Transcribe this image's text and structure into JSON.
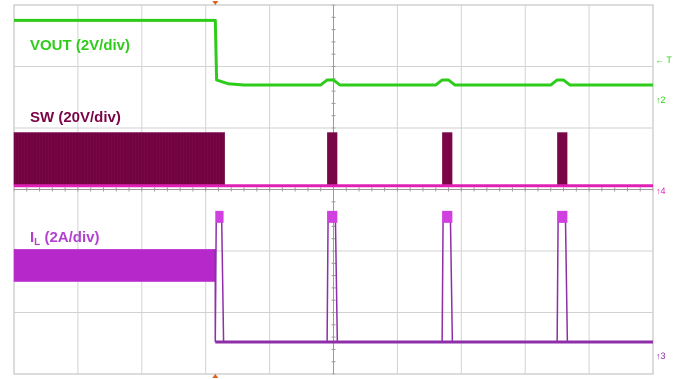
{
  "chart_data": {
    "type": "line",
    "title": "",
    "xlabel": "",
    "ylabel": "",
    "grid": true,
    "x_divisions": 10,
    "y_divisions": 6,
    "trigger_division": 3.15,
    "channels": [
      {
        "id": "vout",
        "label": "VOUT (2V/div)",
        "marker": "2",
        "color": "#2ecc1a",
        "trace": [
          [
            0,
            0.25
          ],
          [
            3.15,
            0.25
          ],
          [
            3.17,
            1.22
          ],
          [
            3.35,
            1.28
          ],
          [
            3.6,
            1.3
          ],
          [
            4.8,
            1.3
          ],
          [
            4.9,
            1.22
          ],
          [
            5.0,
            1.22
          ],
          [
            5.1,
            1.3
          ],
          [
            6.6,
            1.3
          ],
          [
            6.7,
            1.22
          ],
          [
            6.8,
            1.22
          ],
          [
            6.9,
            1.3
          ],
          [
            8.4,
            1.3
          ],
          [
            8.5,
            1.22
          ],
          [
            8.6,
            1.22
          ],
          [
            8.7,
            1.3
          ],
          [
            10,
            1.3
          ]
        ]
      },
      {
        "id": "sw",
        "label": "SW (20V/div)",
        "marker": "4",
        "color": "#e020b4",
        "burst_color": "#7a0648",
        "baseline_div": 2.94,
        "high_div": 2.07,
        "bursts": [
          [
            0,
            3.3
          ],
          [
            4.9,
            5.06
          ],
          [
            6.7,
            6.86
          ],
          [
            8.5,
            8.66
          ]
        ]
      },
      {
        "id": "il",
        "label": "IL (2A/div)",
        "label_main": "I",
        "label_sub": "L",
        "label_rest": " (2A/div)",
        "marker": "3",
        "color": "#8e2ea8",
        "envelope_color": "#c02bd4",
        "envelope_div": [
          3.97,
          4.5
        ],
        "envelope_end": 3.15,
        "peak_div": 3.38,
        "baseline_div": 5.48,
        "pulses": [
          [
            3.15,
            3.28
          ],
          [
            4.9,
            5.06
          ],
          [
            6.7,
            6.86
          ],
          [
            8.5,
            8.66
          ]
        ]
      }
    ]
  },
  "trigger_marker": "T"
}
